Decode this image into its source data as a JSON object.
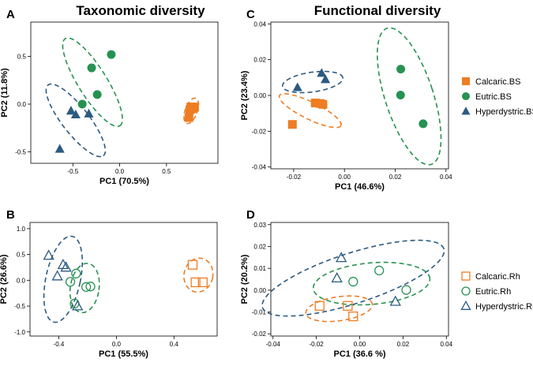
{
  "titles": {
    "left": "Taxonomic diversity",
    "right": "Functional diversity"
  },
  "colors": {
    "Calcaric": "#EE7D23",
    "Eutric": "#269252",
    "Hyperdystric": "#2C5A80"
  },
  "chart_data": [
    {
      "id": "A",
      "type": "scatter",
      "xlabel": "PC1 (70.5%)",
      "ylabel": "PC2 (11.8%)",
      "xlim": [
        -0.95,
        1.05
      ],
      "ylim": [
        -0.62,
        0.86
      ],
      "xticks": [
        {
          "v": -0.5,
          "label": "-0.5"
        },
        {
          "v": 0.0,
          "label": "0.0"
        },
        {
          "v": 0.5,
          "label": "0.5"
        }
      ],
      "yticks": [
        {
          "v": -0.5,
          "label": "-0.5"
        },
        {
          "v": 0.0,
          "label": "0.0"
        },
        {
          "v": 0.5,
          "label": "0.5"
        }
      ],
      "filled": true,
      "series": [
        {
          "name": "Calcaric",
          "marker": "square",
          "points": [
            [
              0.76,
              -0.03
            ],
            [
              0.78,
              -0.05
            ],
            [
              0.74,
              -0.14
            ],
            [
              0.8,
              -0.03
            ],
            [
              0.75,
              -0.06
            ]
          ],
          "ellipse": {
            "cx": 0.765,
            "cy": -0.07,
            "rx": 0.065,
            "ry": 0.14,
            "angle": 20
          }
        },
        {
          "name": "Eutric",
          "marker": "circle",
          "points": [
            [
              -0.4,
              0.0
            ],
            [
              -0.3,
              0.38
            ],
            [
              -0.09,
              0.52
            ],
            [
              -0.24,
              0.1
            ]
          ],
          "ellipse": {
            "cx": -0.29,
            "cy": 0.23,
            "rx": 0.55,
            "ry": 0.15,
            "angle": 58
          }
        },
        {
          "name": "Hyperdystric",
          "marker": "triangle",
          "points": [
            [
              -0.64,
              -0.47
            ],
            [
              -0.52,
              -0.07
            ],
            [
              -0.47,
              -0.11
            ],
            [
              -0.33,
              -0.1
            ]
          ],
          "ellipse": {
            "cx": -0.47,
            "cy": -0.17,
            "rx": 0.48,
            "ry": 0.14,
            "angle": 52
          }
        }
      ]
    },
    {
      "id": "B",
      "type": "scatter",
      "xlabel": "PC1 (55.5%)",
      "ylabel": "PC2 (26.6%)",
      "xlim": [
        -0.6,
        0.7
      ],
      "ylim": [
        -1.08,
        1.12
      ],
      "xticks": [
        {
          "v": -0.4,
          "label": "-0.4"
        },
        {
          "v": 0.0,
          "label": "0.0"
        },
        {
          "v": 0.4,
          "label": "0.4"
        }
      ],
      "yticks": [
        {
          "v": -1.0,
          "label": "-1.0"
        },
        {
          "v": -0.5,
          "label": "-0.5"
        },
        {
          "v": 0.0,
          "label": "0.0"
        },
        {
          "v": 0.5,
          "label": "0.5"
        },
        {
          "v": 1.0,
          "label": "1.0"
        }
      ],
      "filled": false,
      "series": [
        {
          "name": "Calcaric",
          "marker": "square",
          "points": [
            [
              0.53,
              0.3
            ],
            [
              0.55,
              -0.04
            ],
            [
              0.6,
              -0.04
            ]
          ],
          "ellipse": {
            "cx": 0.57,
            "cy": 0.1,
            "rx": 0.1,
            "ry": 0.33,
            "angle": 12
          }
        },
        {
          "name": "Eutric",
          "marker": "circle",
          "points": [
            [
              -0.28,
              0.13
            ],
            [
              -0.32,
              -0.03
            ],
            [
              -0.21,
              -0.13
            ],
            [
              -0.18,
              -0.12
            ],
            [
              -0.29,
              -0.45
            ]
          ],
          "ellipse": {
            "cx": -0.22,
            "cy": -0.15,
            "rx": 0.1,
            "ry": 0.48,
            "angle": 8
          }
        },
        {
          "name": "Hyperdystric",
          "marker": "triangle",
          "points": [
            [
              -0.47,
              0.48
            ],
            [
              -0.37,
              0.3
            ],
            [
              -0.41,
              0.08
            ],
            [
              -0.35,
              0.25
            ],
            [
              -0.27,
              -0.5
            ]
          ],
          "ellipse": {
            "cx": -0.37,
            "cy": 0.02,
            "rx": 0.12,
            "ry": 0.85,
            "angle": 12
          }
        }
      ]
    },
    {
      "id": "C",
      "type": "scatter",
      "xlabel": "PC1 (46.6%)",
      "ylabel": "PC2 (23.4%)",
      "xlim": [
        -0.029,
        0.041
      ],
      "ylim": [
        -0.041,
        0.041
      ],
      "xticks": [
        {
          "v": -0.02,
          "label": "-0.02"
        },
        {
          "v": 0.0,
          "label": "0.00"
        },
        {
          "v": 0.02,
          "label": "0.02"
        },
        {
          "v": 0.04,
          "label": "0.04"
        }
      ],
      "yticks": [
        {
          "v": -0.04,
          "label": "-0.04"
        },
        {
          "v": -0.02,
          "label": "-0.02"
        },
        {
          "v": 0.0,
          "label": "0.00"
        },
        {
          "v": 0.02,
          "label": "0.02"
        },
        {
          "v": 0.04,
          "label": "0.04"
        }
      ],
      "filled": true,
      "series": [
        {
          "name": "Calcaric",
          "marker": "square",
          "points": [
            [
              -0.0205,
              -0.0162
            ],
            [
              -0.0115,
              -0.0042
            ],
            [
              -0.0095,
              -0.0045
            ],
            [
              -0.0085,
              -0.005
            ]
          ],
          "ellipse": {
            "cx": -0.0135,
            "cy": -0.0085,
            "rx": 0.0135,
            "ry": 0.0048,
            "angle": 26
          }
        },
        {
          "name": "Eutric",
          "marker": "circle",
          "points": [
            [
              0.0222,
              0.0147
            ],
            [
              0.0221,
              0.0002
            ],
            [
              0.031,
              -0.0158
            ]
          ],
          "ellipse": {
            "cx": 0.0255,
            "cy": -0.0005,
            "rx": 0.0095,
            "ry": 0.04,
            "angle": -18
          }
        },
        {
          "name": "Hyperdystric",
          "marker": "triangle",
          "points": [
            [
              -0.0185,
              0.0045
            ],
            [
              -0.009,
              0.0125
            ],
            [
              -0.0075,
              0.009
            ]
          ],
          "ellipse": {
            "cx": -0.0125,
            "cy": 0.0075,
            "rx": 0.012,
            "ry": 0.0055,
            "angle": -8
          }
        }
      ],
      "legend": {
        "labels": [
          "Calcaric.BS",
          "Eutric.BS",
          "Hyperdystric.BS"
        ]
      }
    },
    {
      "id": "D",
      "type": "scatter",
      "xlabel": "PC1 (36.6 %)",
      "ylabel": "PC2 (20.2%)",
      "xlim": [
        -0.041,
        0.041
      ],
      "ylim": [
        -0.021,
        0.031
      ],
      "xticks": [
        {
          "v": -0.04,
          "label": "-0.04"
        },
        {
          "v": -0.02,
          "label": "-0.02"
        },
        {
          "v": 0.0,
          "label": "0.00"
        },
        {
          "v": 0.02,
          "label": "0.02"
        },
        {
          "v": 0.04,
          "label": "0.04"
        }
      ],
      "yticks": [
        {
          "v": -0.02,
          "label": "-0.02"
        },
        {
          "v": -0.01,
          "label": "-0.01"
        },
        {
          "v": 0.0,
          "label": "0.00"
        },
        {
          "v": 0.01,
          "label": "0.01"
        },
        {
          "v": 0.02,
          "label": "0.02"
        },
        {
          "v": 0.03,
          "label": "0.03"
        }
      ],
      "filled": false,
      "series": [
        {
          "name": "Calcaric",
          "marker": "square",
          "points": [
            [
              -0.0185,
              -0.0072
            ],
            [
              -0.0055,
              -0.0072
            ],
            [
              -0.003,
              -0.012
            ]
          ],
          "ellipse": {
            "cx": -0.0095,
            "cy": -0.0085,
            "rx": 0.0155,
            "ry": 0.0055,
            "angle": -8
          }
        },
        {
          "name": "Eutric",
          "marker": "circle",
          "points": [
            [
              -0.003,
              0.0039
            ],
            [
              0.009,
              0.009
            ],
            [
              0.0215,
              0.0001
            ]
          ],
          "ellipse": {
            "cx": 0.0055,
            "cy": 0.003,
            "rx": 0.027,
            "ry": 0.0095,
            "angle": -5
          }
        },
        {
          "name": "Hyperdystric",
          "marker": "triangle",
          "points": [
            [
              -0.0085,
              0.0148
            ],
            [
              -0.0105,
              0.0055
            ],
            [
              0.0165,
              -0.0052
            ]
          ],
          "ellipse": {
            "cx": -0.003,
            "cy": 0.0055,
            "rx": 0.044,
            "ry": 0.0115,
            "angle": -18
          }
        }
      ],
      "legend": {
        "labels": [
          "Calcaric.Rh",
          "Eutric.Rh",
          "Hyperdystric.Rh"
        ]
      }
    }
  ]
}
